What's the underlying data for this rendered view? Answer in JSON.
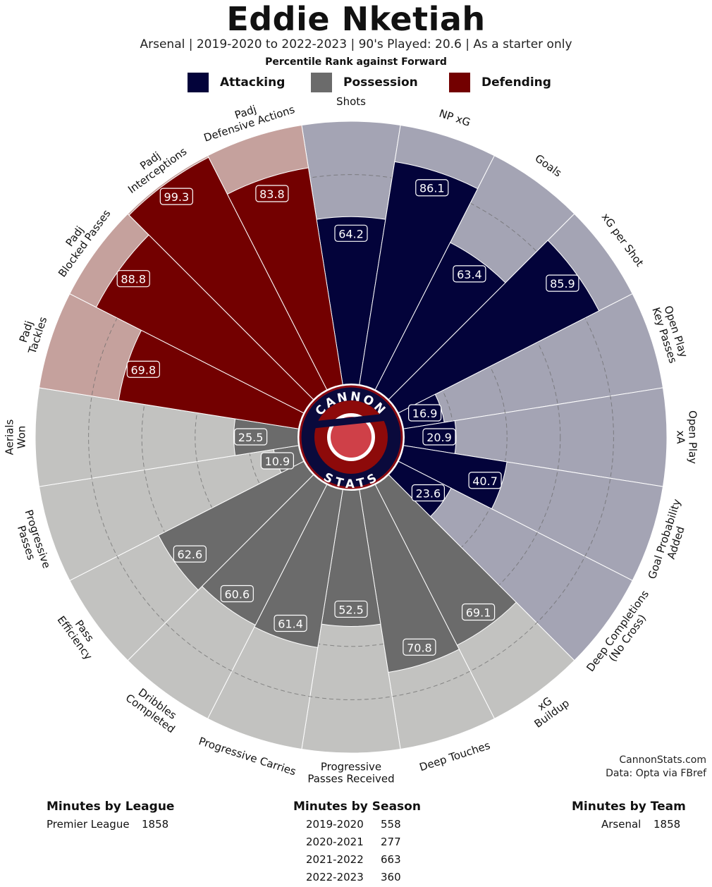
{
  "header": {
    "title": "Eddie Nketiah",
    "subtitle": "Arsenal | 2019-2020 to 2022-2023 | 90's Played: 20.6 | As a starter only",
    "rank_label": "Percentile Rank against Forward"
  },
  "legend": [
    {
      "name": "Attacking",
      "color": "#03033a"
    },
    {
      "name": "Possession",
      "color": "#6b6b6b"
    },
    {
      "name": "Defending",
      "color": "#730000"
    }
  ],
  "logo": {
    "top_text": "CANNON",
    "bottom_text": "STATS"
  },
  "chart_data": {
    "type": "polar-bar",
    "title": "Eddie Nketiah",
    "scale": [
      0,
      100
    ],
    "categories": [
      {
        "label": "Shots",
        "value": 64.2,
        "group": "Attacking"
      },
      {
        "label": "NP xG",
        "value": 86.1,
        "group": "Attacking"
      },
      {
        "label": "Goals",
        "value": 63.4,
        "group": "Attacking"
      },
      {
        "label": "xG per Shot",
        "value": 85.9,
        "group": "Attacking"
      },
      {
        "label": "Open Play\nKey Passes",
        "value": 16.9,
        "group": "Attacking"
      },
      {
        "label": "Open Play\nxA",
        "value": 20.9,
        "group": "Attacking"
      },
      {
        "label": "Goal Probability\nAdded",
        "value": 40.7,
        "group": "Attacking"
      },
      {
        "label": "Deep Completions\n(No Cross)",
        "value": 23.6,
        "group": "Attacking"
      },
      {
        "label": "xG\nBuildup",
        "value": 69.1,
        "group": "Possession"
      },
      {
        "label": "Deep Touches",
        "value": 70.8,
        "group": "Possession"
      },
      {
        "label": "Progressive\nPasses Received",
        "value": 52.5,
        "group": "Possession"
      },
      {
        "label": "Progressive Carries",
        "value": 61.4,
        "group": "Possession"
      },
      {
        "label": "Dribbles\nCompleted",
        "value": 60.6,
        "group": "Possession"
      },
      {
        "label": "Pass\nEfficiency",
        "value": 62.6,
        "group": "Possession"
      },
      {
        "label": "Progressive\nPasses",
        "value": 10.9,
        "group": "Possession"
      },
      {
        "label": "Aerials\nWon",
        "value": 25.5,
        "group": "Possession"
      },
      {
        "label": "Padj\nTackles",
        "value": 69.8,
        "group": "Defending"
      },
      {
        "label": "Padj\nBlocked Passes",
        "value": 88.8,
        "group": "Defending"
      },
      {
        "label": "Padj\nInterceptions",
        "value": 99.3,
        "group": "Defending"
      },
      {
        "label": "Padj\nDefensive Actions",
        "value": 83.8,
        "group": "Defending"
      }
    ],
    "background_colors": {
      "Attacking": "#a4a4b4",
      "Possession": "#c2c2c0",
      "Defending": "#c5a19d"
    }
  },
  "source": {
    "line1": "CannonStats.com",
    "line2": "Data: Opta via FBref"
  },
  "minutes": {
    "league": {
      "title": "Minutes by League",
      "rows": [
        {
          "name": "Premier League",
          "minutes": "1858"
        }
      ]
    },
    "season": {
      "title": "Minutes by Season",
      "rows": [
        {
          "name": "2019-2020",
          "minutes": "558"
        },
        {
          "name": "2020-2021",
          "minutes": "277"
        },
        {
          "name": "2021-2022",
          "minutes": "663"
        },
        {
          "name": "2022-2023",
          "minutes": "360"
        }
      ]
    },
    "team": {
      "title": "Minutes by Team",
      "rows": [
        {
          "name": "Arsenal",
          "minutes": "1858"
        }
      ]
    }
  }
}
